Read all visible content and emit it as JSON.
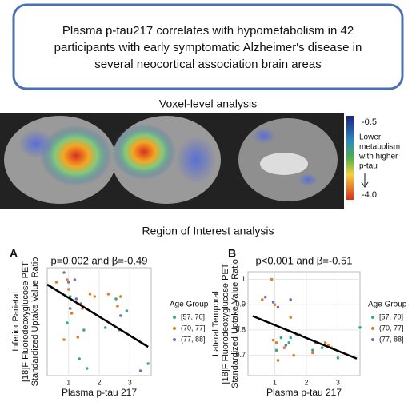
{
  "header": {
    "lines": [
      "Plasma p-tau217 correlates with hypometabolism in 42",
      "participants with early symptomatic Alzheimer's disease in",
      "several neocortical association brain areas"
    ]
  },
  "voxel": {
    "title": "Voxel-level analysis",
    "colorbar": {
      "top_label": "-0.5",
      "bottom_label": "-4.0",
      "caption": [
        "Lower",
        "metabolism",
        "with higher",
        "p-tau"
      ]
    }
  },
  "roi_title": "Region of Interest analysis",
  "chart_data": [
    {
      "type": "scatter",
      "panel": "A",
      "title": "p=0.002 and β=-0.49",
      "xlabel": "Plasma p-tau 217",
      "ylabel": [
        "Inferior Parietal",
        "[18]F Fluorodeoxyglucose PET",
        "Standardized Uptake Value Ratio"
      ],
      "xlim": [
        0.3,
        3.7
      ],
      "ylim": [
        0.6,
        1.05
      ],
      "xticks": [
        1,
        2,
        3
      ],
      "grid": true,
      "legend_title": "Age Group",
      "series": [
        {
          "name": "[57, 70]",
          "color": "#3aa88a",
          "x": [
            0.95,
            1.35,
            1.5,
            1.6,
            2.2,
            2.55,
            2.9,
            3.6,
            1.05
          ],
          "values": [
            0.82,
            0.67,
            0.79,
            0.63,
            0.8,
            0.92,
            0.87,
            0.65,
            0.93
          ]
        },
        {
          "name": "(70, 77]",
          "color": "#d9822b",
          "x": [
            0.6,
            0.95,
            1.0,
            1.1,
            1.3,
            1.45,
            1.7,
            1.85,
            2.3,
            2.6,
            2.7,
            2.65,
            0.85,
            1.3
          ],
          "values": [
            0.99,
            1.0,
            0.96,
            0.86,
            0.9,
            0.88,
            0.94,
            0.93,
            0.94,
            0.89,
            0.93,
            0.79,
            0.75,
            0.76
          ]
        },
        {
          "name": "(77, 88]",
          "color": "#7570b3",
          "x": [
            0.85,
            1.0,
            1.2,
            1.25,
            1.4,
            1.05,
            2.7,
            3.35
          ],
          "values": [
            1.03,
            0.99,
            1.0,
            0.92,
            0.9,
            0.88,
            0.85,
            0.62
          ]
        }
      ],
      "fit": {
        "x": [
          0.3,
          3.6
        ],
        "y": [
          0.98,
          0.72
        ]
      }
    },
    {
      "type": "scatter",
      "panel": "B",
      "title": "p<0.001 and β=-0.51",
      "xlabel": "Plasma p-tau 217",
      "ylabel": [
        "Lateral Temporal",
        "[18]F Fluorodeoxyglucose PET",
        "Standardized Uptake Value Ratio"
      ],
      "xlim": [
        0.15,
        3.7
      ],
      "ylim": [
        0.62,
        1.03
      ],
      "xticks": [
        1,
        2,
        3
      ],
      "yticks": [
        0.7,
        0.8,
        0.9,
        1
      ],
      "grid": true,
      "legend_title": "Age Group",
      "series": [
        {
          "name": "[57, 70]",
          "color": "#3aa88a",
          "x": [
            1.2,
            1.45,
            1.5,
            1.7,
            2.2,
            2.5,
            3.0,
            3.7,
            1.05
          ],
          "values": [
            0.77,
            0.75,
            0.77,
            0.78,
            0.72,
            0.73,
            0.69,
            0.81,
            0.72
          ]
        },
        {
          "name": "(70, 77]",
          "color": "#d9822b",
          "x": [
            0.9,
            0.95,
            1.0,
            1.05,
            1.1,
            1.3,
            1.5,
            1.6,
            2.2,
            2.6,
            2.7,
            2.8,
            0.6
          ],
          "values": [
            1.0,
            0.76,
            0.9,
            0.75,
            0.68,
            0.73,
            0.85,
            0.7,
            0.71,
            0.75,
            0.74,
            0.73,
            0.92
          ]
        },
        {
          "name": "(77, 88]",
          "color": "#7570b3",
          "x": [
            0.7,
            0.95,
            1.1,
            1.35,
            1.5,
            2.3,
            1.8
          ],
          "values": [
            0.93,
            0.91,
            0.89,
            0.74,
            0.92,
            0.75,
            0.78
          ]
        }
      ],
      "fit": {
        "x": [
          0.3,
          3.6
        ],
        "y": [
          0.855,
          0.687
        ]
      }
    }
  ]
}
